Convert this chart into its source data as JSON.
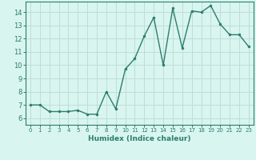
{
  "x": [
    0,
    1,
    2,
    3,
    4,
    5,
    6,
    7,
    8,
    9,
    10,
    11,
    12,
    13,
    14,
    15,
    16,
    17,
    18,
    19,
    20,
    21,
    22,
    23
  ],
  "y": [
    7.0,
    7.0,
    6.5,
    6.5,
    6.5,
    6.6,
    6.3,
    6.3,
    8.0,
    6.7,
    9.7,
    10.5,
    12.2,
    13.6,
    10.0,
    14.3,
    11.3,
    14.1,
    14.0,
    14.5,
    13.1,
    12.3,
    12.3,
    11.4
  ],
  "line_color": "#2d7d6e",
  "marker": "o",
  "markersize": 2.0,
  "linewidth": 1.0,
  "bg_color": "#d8f5f0",
  "grid_color": "#c0ddd8",
  "xlabel": "Humidex (Indice chaleur)",
  "ylabel": "",
  "xlim": [
    -0.5,
    23.5
  ],
  "ylim": [
    5.5,
    14.8
  ],
  "yticks": [
    6,
    7,
    8,
    9,
    10,
    11,
    12,
    13,
    14
  ],
  "xticks": [
    0,
    1,
    2,
    3,
    4,
    5,
    6,
    7,
    8,
    9,
    10,
    11,
    12,
    13,
    14,
    15,
    16,
    17,
    18,
    19,
    20,
    21,
    22,
    23
  ],
  "tick_color": "#2d7d6e",
  "label_color": "#2d7d6e",
  "spine_color": "#2d7d6e"
}
